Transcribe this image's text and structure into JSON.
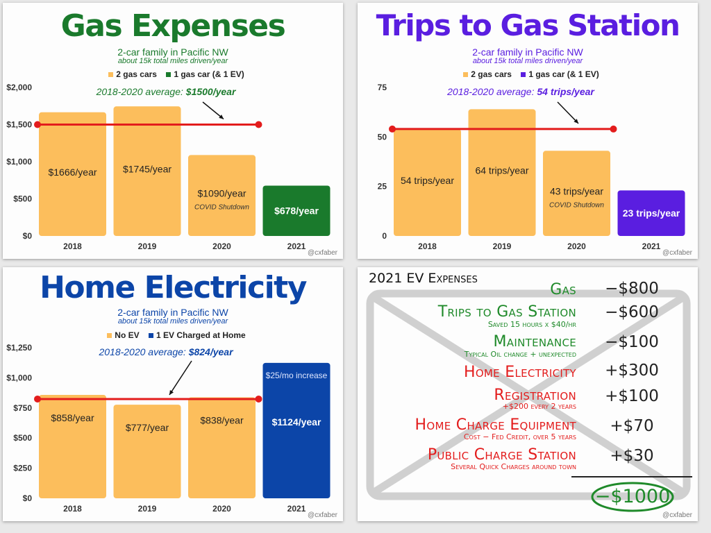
{
  "credit": "@cxfaber",
  "colors": {
    "orange": "#fcbe5c",
    "green": "#1a7a2c",
    "purple": "#5a1ee0",
    "blue": "#0c45a8",
    "red": "#e31c1c",
    "ev_green": "#1f8a2a"
  },
  "chart_data": [
    {
      "type": "bar",
      "title": "Gas Expenses",
      "subtitle": "2-car family in Pacific NW",
      "subtitle2": "about 15k total miles driven/year",
      "legend": [
        {
          "name": "2 gas cars",
          "color": "#fcbe5c"
        },
        {
          "name": "1 gas car (& 1 EV)",
          "color": "#1a7a2c"
        }
      ],
      "categories": [
        "2018",
        "2019",
        "2020",
        "2021"
      ],
      "values": [
        1666,
        1745,
        1090,
        678
      ],
      "value_labels": [
        "$1666/year",
        "$1745/year",
        "$1090/year",
        "$678/year"
      ],
      "bar_colors": [
        "#fcbe5c",
        "#fcbe5c",
        "#fcbe5c",
        "#1a7a2c"
      ],
      "bar_notes": [
        "",
        "",
        "COVID Shutdown",
        ""
      ],
      "yticks": [
        0,
        500,
        1000,
        1500,
        2000
      ],
      "ytick_labels": [
        "$0",
        "$500",
        "$1,000",
        "$1,500",
        "$2,000"
      ],
      "ylim": [
        0,
        2000
      ],
      "avg_value": 1500,
      "avg_label_prefix": "2018-2020 average: ",
      "avg_label_value": "$1500/year",
      "accent": "#1a7a2c"
    },
    {
      "type": "bar",
      "title": "Trips to Gas Station",
      "subtitle": "2-car family in Pacific NW",
      "subtitle2": "about 15k total miles driven/year",
      "legend": [
        {
          "name": "2 gas cars",
          "color": "#fcbe5c"
        },
        {
          "name": "1 gas car (& 1 EV)",
          "color": "#5a1ee0"
        }
      ],
      "categories": [
        "2018",
        "2019",
        "2020",
        "2021"
      ],
      "values": [
        54,
        64,
        43,
        23
      ],
      "value_labels": [
        "54 trips/year",
        "64 trips/year",
        "43 trips/year",
        "23 trips/year"
      ],
      "bar_colors": [
        "#fcbe5c",
        "#fcbe5c",
        "#fcbe5c",
        "#5a1ee0"
      ],
      "bar_notes": [
        "",
        "",
        "COVID Shutdown",
        ""
      ],
      "yticks": [
        0,
        25,
        50,
        75
      ],
      "ytick_labels": [
        "0",
        "25",
        "50",
        "75"
      ],
      "ylim": [
        0,
        75
      ],
      "avg_value": 54,
      "avg_label_prefix": "2018-2020 average: ",
      "avg_label_value": "54 trips/year",
      "accent": "#5a1ee0"
    },
    {
      "type": "bar",
      "title": "Home Electricity",
      "subtitle": "2-car family in Pacific NW",
      "subtitle2": "about 15k total miles driven/year",
      "legend": [
        {
          "name": "No EV",
          "color": "#fcbe5c"
        },
        {
          "name": "1 EV Charged at Home",
          "color": "#0c45a8"
        }
      ],
      "categories": [
        "2018",
        "2019",
        "2020",
        "2021"
      ],
      "values": [
        858,
        777,
        838,
        1124
      ],
      "value_labels": [
        "$858/year",
        "$777/year",
        "$838/year",
        "$1124/year"
      ],
      "bar_colors": [
        "#fcbe5c",
        "#fcbe5c",
        "#fcbe5c",
        "#0c45a8"
      ],
      "bar_notes": [
        "",
        "",
        "",
        "$25/mo increase"
      ],
      "yticks": [
        0,
        250,
        500,
        750,
        1000,
        1250
      ],
      "ytick_labels": [
        "$0",
        "$250",
        "$500",
        "$750",
        "$1,000",
        "$1,250"
      ],
      "ylim": [
        0,
        1250
      ],
      "avg_value": 824,
      "avg_label_prefix": "2018-2020 average: ",
      "avg_label_value": "$824/year",
      "accent": "#0c45a8"
    }
  ],
  "ev_expenses": {
    "title": "2021 EV Expenses",
    "rows": [
      {
        "label": "Gas",
        "sub": "",
        "value": "−$800",
        "color": "#1f8a2a"
      },
      {
        "label": "Trips to Gas Station",
        "sub": "Saved 15 hours x $40/hr",
        "value": "−$600",
        "color": "#1f8a2a"
      },
      {
        "label": "Maintenance",
        "sub": "Typical Oil change + unexpected",
        "value": "−$100",
        "color": "#1f8a2a"
      },
      {
        "label": "Home Electricity",
        "sub": "",
        "value": "+$300",
        "color": "#e31c1c"
      },
      {
        "label": "Registration",
        "sub": "+$200 every 2 years",
        "value": "+$100",
        "color": "#e31c1c"
      },
      {
        "label": "Home Charge Equipment",
        "sub": "Cost − Fed Credit, over 5 years",
        "value": "+$70",
        "color": "#e31c1c"
      },
      {
        "label": "Public Charge Station",
        "sub": "Several Quick Charges around town",
        "value": "+$30",
        "color": "#e31c1c"
      }
    ],
    "total": "−$1000"
  }
}
